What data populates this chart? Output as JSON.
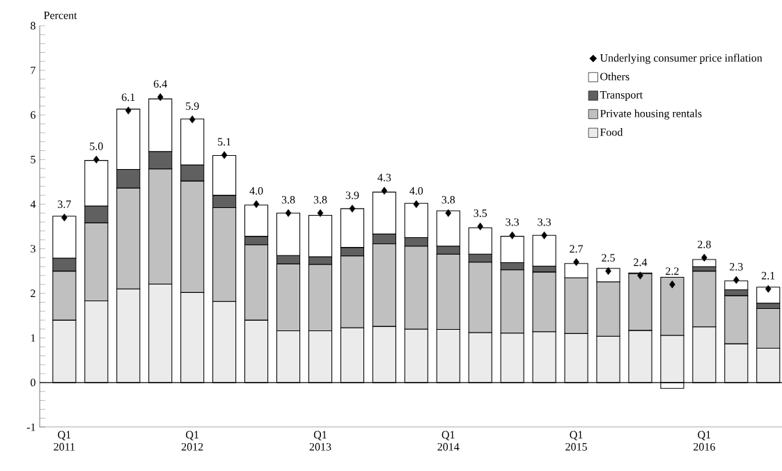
{
  "chart_data": {
    "type": "bar",
    "stacked": true,
    "ylabel": "Percent",
    "categories": [
      "Q1 2011",
      null,
      null,
      null,
      "Q1 2012",
      null,
      null,
      null,
      "Q1 2013",
      null,
      null,
      null,
      "Q1 2014",
      null,
      null,
      null,
      "Q1 2015",
      null,
      null,
      null,
      "Q1 2016",
      null,
      null
    ],
    "series": [
      {
        "name": "Food",
        "color": "#ebebeb",
        "values": [
          1.4,
          1.83,
          2.1,
          2.21,
          2.02,
          1.82,
          1.4,
          1.16,
          1.16,
          1.23,
          1.26,
          1.2,
          1.19,
          1.12,
          1.11,
          1.14,
          1.1,
          1.04,
          1.17,
          1.06,
          1.25,
          0.87,
          0.77
        ]
      },
      {
        "name": "Private housing rentals",
        "color": "#c0c0c0",
        "values": [
          1.1,
          1.75,
          2.26,
          2.58,
          2.5,
          2.1,
          1.69,
          1.5,
          1.49,
          1.61,
          1.85,
          1.86,
          1.69,
          1.58,
          1.42,
          1.34,
          1.25,
          1.22,
          1.27,
          1.3,
          1.25,
          1.08,
          0.89
        ]
      },
      {
        "name": "Transport",
        "color": "#606060",
        "values": [
          0.29,
          0.38,
          0.42,
          0.39,
          0.36,
          0.28,
          0.19,
          0.19,
          0.17,
          0.19,
          0.22,
          0.19,
          0.18,
          0.18,
          0.16,
          0.13,
          null,
          null,
          null,
          null,
          0.1,
          0.13,
          0.12
        ]
      },
      {
        "name": "Others",
        "color": "#ffffff",
        "values": [
          0.94,
          1.02,
          1.35,
          1.18,
          1.03,
          0.89,
          0.7,
          0.95,
          0.93,
          0.87,
          0.94,
          0.77,
          0.79,
          0.59,
          0.59,
          0.69,
          0.32,
          0.3,
          0.02,
          -0.13,
          0.16,
          0.2,
          0.36
        ]
      },
      {
        "name": "Underlying consumer price inflation",
        "type": "scatter",
        "marker": "diamond",
        "color": "#000000",
        "values": [
          3.7,
          5.0,
          6.1,
          6.4,
          5.9,
          5.1,
          4.0,
          3.8,
          3.8,
          3.9,
          4.3,
          4.0,
          3.8,
          3.5,
          3.3,
          3.3,
          2.7,
          2.5,
          2.4,
          2.2,
          2.8,
          2.3,
          2.1
        ],
        "value_labels": [
          "3.7",
          "5.0",
          "6.1",
          "6.4",
          "5.9",
          "5.1",
          "4.0",
          "3.8",
          "3.8",
          "3.9",
          "4.3",
          "4.0",
          "3.8",
          "3.5",
          "3.3",
          "3.3",
          "2.7",
          "2.5",
          "2.4",
          "2.2",
          "2.8",
          "2.3",
          "2.1"
        ]
      }
    ],
    "ylim": [
      -1,
      8
    ],
    "yticks": [
      -1,
      0,
      1,
      2,
      3,
      4,
      5,
      6,
      7,
      8
    ],
    "ref_lines": [
      {
        "axis": "y",
        "value": 0,
        "color": "#000000"
      }
    ],
    "grid": false,
    "legend": "top right"
  }
}
